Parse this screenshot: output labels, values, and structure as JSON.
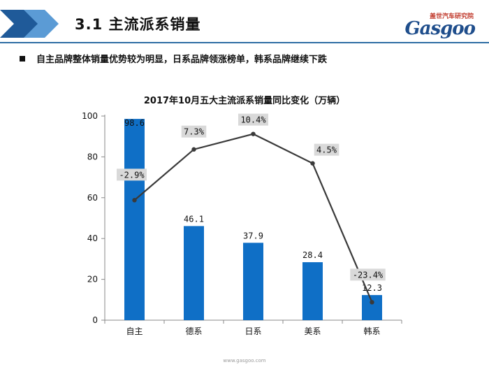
{
  "header": {
    "title": "3.1  主流派系销量",
    "brand_cn": "盖世汽车研究院",
    "brand_logo": "Gasgoo"
  },
  "headline": "自主品牌整体销量优势较为明显，日系品牌领涨榜单，韩系品牌继续下跌",
  "footer": "www.gasgoo.com",
  "colors": {
    "bar": "#0f6fc6",
    "line": "#3a3a3a",
    "header_rule": "#2e6da4",
    "chevron_dark": "#1f5a99",
    "chevron_light": "#5b9bd5"
  },
  "chart_data": {
    "type": "bar",
    "title": "2017年10月五大主流派系销量同比变化（万辆）",
    "categories": [
      "自主",
      "德系",
      "日系",
      "美系",
      "韩系"
    ],
    "series": [
      {
        "type": "bar",
        "values": [
          98.6,
          46.1,
          37.9,
          28.4,
          12.3
        ],
        "labels": [
          "98.6",
          "46.1",
          "37.9",
          "28.4",
          "12.3"
        ]
      },
      {
        "type": "line",
        "secondary_axis": true,
        "values": [
          -2.9,
          7.3,
          10.4,
          4.5,
          -23.4
        ],
        "labels": [
          "-2.9%",
          "7.3%",
          "10.4%",
          "4.5%",
          "-23.4%"
        ]
      }
    ],
    "yticks": [
      "0",
      "20",
      "40",
      "60",
      "80",
      "100"
    ],
    "ylim": [
      0,
      100
    ],
    "y2lim": [
      -27,
      14
    ],
    "grid": false,
    "legend": "none"
  }
}
